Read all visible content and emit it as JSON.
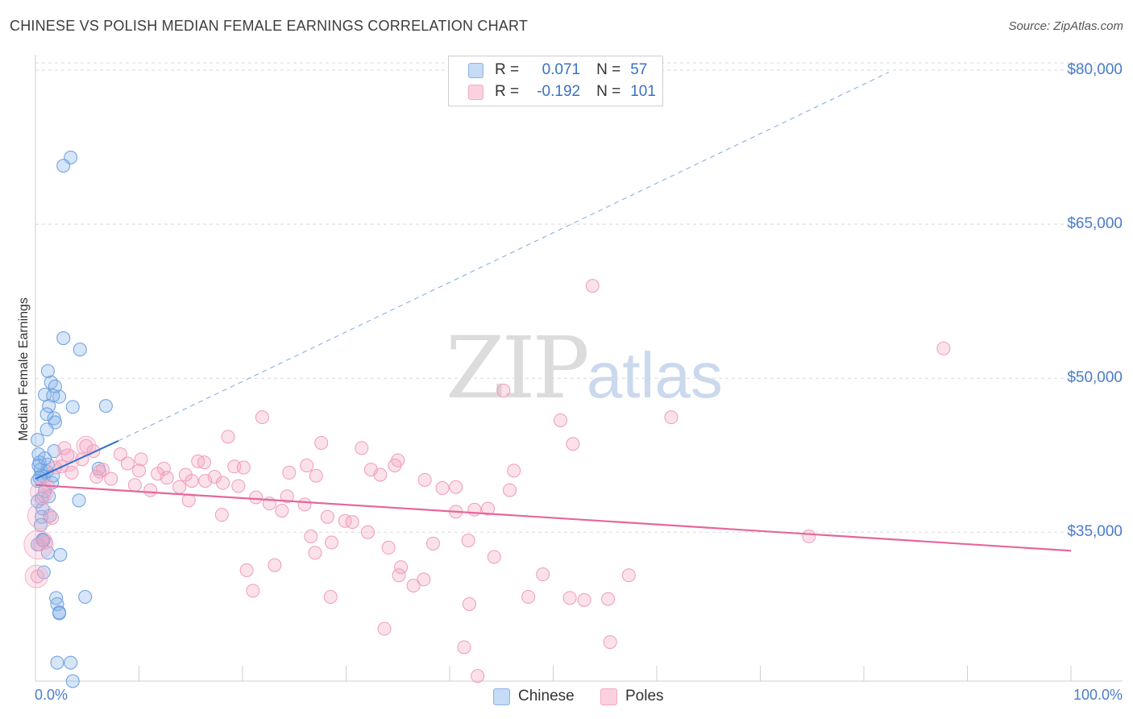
{
  "chart_data": {
    "type": "scatter",
    "title": "CHINESE VS POLISH MEDIAN FEMALE EARNINGS CORRELATION CHART",
    "source": "Source: ZipAtlas.com",
    "ylabel": "Median Female Earnings",
    "xlabel": "",
    "x_tick_labels": [
      "0.0%",
      "100.0%"
    ],
    "y_ticks": [
      {
        "value": 35000,
        "label": "$35,000"
      },
      {
        "value": 50000,
        "label": "$50,000"
      },
      {
        "value": 65000,
        "label": "$65,000"
      },
      {
        "value": 80000,
        "label": "$80,000"
      }
    ],
    "xlim": [
      0,
      100
    ],
    "ylim": [
      20500,
      81500
    ],
    "watermark": {
      "zip": "ZIP",
      "atlas": "atlas"
    },
    "legend": [
      {
        "r_label": "R =",
        "r_value": "0.071",
        "n_label": "N =",
        "n_value": "57"
      },
      {
        "r_label": "R =",
        "r_value": "-0.192",
        "n_label": "N =",
        "n_value": "101"
      }
    ],
    "series": [
      {
        "name": "Chinese",
        "color": "#8ab4e8",
        "line_color": "#2f6fd0",
        "trend": {
          "x_start": 0.0,
          "y_start": 40200,
          "x_end": 8.0,
          "y_end": 43900,
          "dash_x_end": 82.4,
          "dash_y_end": 79800
        },
        "points": [
          [
            3.4,
            71.5
          ],
          [
            2.7,
            70.7
          ],
          [
            2.7,
            53.9
          ],
          [
            4.3,
            52.8
          ],
          [
            1.2,
            50.7
          ],
          [
            1.5,
            49.6
          ],
          [
            1.9,
            49.2
          ],
          [
            0.9,
            48.4
          ],
          [
            2.3,
            48.2
          ],
          [
            1.7,
            48.3
          ],
          [
            1.3,
            47.3
          ],
          [
            3.6,
            47.2
          ],
          [
            6.8,
            47.3
          ],
          [
            1.1,
            46.5
          ],
          [
            1.8,
            46.1
          ],
          [
            1.9,
            45.7
          ],
          [
            1.1,
            45.0
          ],
          [
            0.2,
            44.0
          ],
          [
            1.8,
            42.9
          ],
          [
            0.3,
            42.6
          ],
          [
            0.4,
            41.8
          ],
          [
            1.2,
            41.6
          ],
          [
            0.5,
            41.1
          ],
          [
            1.1,
            40.9
          ],
          [
            0.6,
            40.5
          ],
          [
            0.8,
            40.4
          ],
          [
            0.4,
            40.3
          ],
          [
            6.1,
            41.2
          ],
          [
            0.2,
            40.0
          ],
          [
            1.6,
            39.8
          ],
          [
            0.9,
            39.0
          ],
          [
            0.6,
            38.3
          ],
          [
            0.2,
            38.0
          ],
          [
            1.3,
            38.5
          ],
          [
            4.2,
            38.1
          ],
          [
            0.7,
            37.3
          ],
          [
            0.6,
            36.5
          ],
          [
            1.4,
            36.6
          ],
          [
            0.5,
            35.7
          ],
          [
            0.8,
            34.2
          ],
          [
            0.7,
            34.3
          ],
          [
            0.7,
            34.2
          ],
          [
            1.2,
            33.0
          ],
          [
            2.4,
            32.8
          ],
          [
            0.8,
            31.1
          ],
          [
            2.0,
            28.6
          ],
          [
            4.8,
            28.7
          ],
          [
            2.1,
            28.0
          ],
          [
            2.3,
            27.2
          ],
          [
            2.3,
            27.1
          ],
          [
            2.1,
            22.3
          ],
          [
            3.4,
            22.3
          ],
          [
            3.6,
            20.5
          ],
          [
            0.2,
            33.8
          ],
          [
            1.7,
            40.5
          ],
          [
            0.3,
            41.5
          ],
          [
            0.9,
            42.2
          ]
        ]
      },
      {
        "name": "Poles",
        "color": "#f4a8c4",
        "line_color": "#e5679a",
        "trend": {
          "x_start": 0.0,
          "y_start": 39600,
          "x_end": 100.0,
          "y_end": 33200
        },
        "points": [
          [
            53.8,
            59.0
          ],
          [
            87.7,
            52.9
          ],
          [
            45.2,
            48.8
          ],
          [
            21.9,
            46.2
          ],
          [
            50.7,
            45.9
          ],
          [
            61.4,
            46.2
          ],
          [
            18.6,
            44.3
          ],
          [
            27.6,
            43.7
          ],
          [
            51.9,
            43.6
          ],
          [
            31.5,
            43.2
          ],
          [
            5.6,
            42.9
          ],
          [
            3.1,
            42.5
          ],
          [
            8.2,
            42.6
          ],
          [
            4.5,
            42.1
          ],
          [
            10.2,
            42.1
          ],
          [
            8.9,
            41.7
          ],
          [
            15.7,
            41.9
          ],
          [
            16.3,
            41.8
          ],
          [
            26.2,
            41.5
          ],
          [
            19.2,
            41.4
          ],
          [
            20.1,
            41.3
          ],
          [
            35.0,
            42.0
          ],
          [
            2.5,
            41.4
          ],
          [
            6.5,
            41.1
          ],
          [
            10.0,
            41.0
          ],
          [
            12.4,
            41.2
          ],
          [
            32.4,
            41.1
          ],
          [
            34.7,
            41.5
          ],
          [
            46.2,
            41.0
          ],
          [
            6.2,
            40.9
          ],
          [
            11.8,
            40.7
          ],
          [
            14.5,
            40.6
          ],
          [
            17.3,
            40.4
          ],
          [
            24.5,
            40.8
          ],
          [
            27.1,
            40.5
          ],
          [
            33.3,
            40.6
          ],
          [
            37.6,
            40.1
          ],
          [
            5.9,
            40.4
          ],
          [
            7.3,
            40.2
          ],
          [
            12.7,
            40.3
          ],
          [
            15.1,
            40.0
          ],
          [
            16.4,
            40.0
          ],
          [
            18.1,
            39.8
          ],
          [
            13.9,
            39.4
          ],
          [
            9.6,
            39.6
          ],
          [
            11.1,
            39.1
          ],
          [
            19.6,
            39.5
          ],
          [
            39.3,
            39.3
          ],
          [
            40.6,
            39.4
          ],
          [
            45.8,
            39.1
          ],
          [
            21.3,
            38.4
          ],
          [
            24.3,
            38.5
          ],
          [
            14.8,
            38.1
          ],
          [
            22.6,
            37.8
          ],
          [
            26.0,
            37.7
          ],
          [
            23.8,
            37.1
          ],
          [
            42.4,
            37.2
          ],
          [
            40.6,
            37.0
          ],
          [
            43.7,
            37.3
          ],
          [
            18.0,
            36.7
          ],
          [
            28.2,
            36.5
          ],
          [
            29.9,
            36.1
          ],
          [
            30.6,
            36.0
          ],
          [
            32.1,
            35.0
          ],
          [
            26.6,
            34.6
          ],
          [
            38.4,
            33.9
          ],
          [
            34.1,
            33.5
          ],
          [
            28.6,
            34.0
          ],
          [
            41.8,
            34.2
          ],
          [
            27.0,
            33.0
          ],
          [
            44.3,
            32.6
          ],
          [
            74.7,
            34.6
          ],
          [
            23.1,
            31.8
          ],
          [
            35.3,
            31.6
          ],
          [
            20.4,
            31.3
          ],
          [
            35.1,
            30.8
          ],
          [
            37.5,
            30.4
          ],
          [
            49.0,
            30.9
          ],
          [
            57.3,
            30.8
          ],
          [
            21.0,
            29.3
          ],
          [
            36.5,
            29.8
          ],
          [
            28.5,
            28.7
          ],
          [
            47.6,
            28.7
          ],
          [
            51.6,
            28.6
          ],
          [
            53.0,
            28.4
          ],
          [
            55.3,
            28.5
          ],
          [
            41.9,
            28.0
          ],
          [
            33.7,
            25.6
          ],
          [
            55.5,
            24.3
          ],
          [
            41.4,
            23.8
          ],
          [
            42.7,
            21.0
          ],
          [
            0.2,
            30.7
          ],
          [
            0.4,
            33.8
          ],
          [
            1.0,
            34.0
          ],
          [
            1.6,
            36.4
          ],
          [
            0.8,
            38.6
          ],
          [
            1.2,
            39.5
          ],
          [
            3.5,
            40.8
          ],
          [
            4.9,
            43.4
          ],
          [
            2.8,
            43.2
          ],
          [
            1.9,
            41.3
          ]
        ]
      }
    ]
  }
}
